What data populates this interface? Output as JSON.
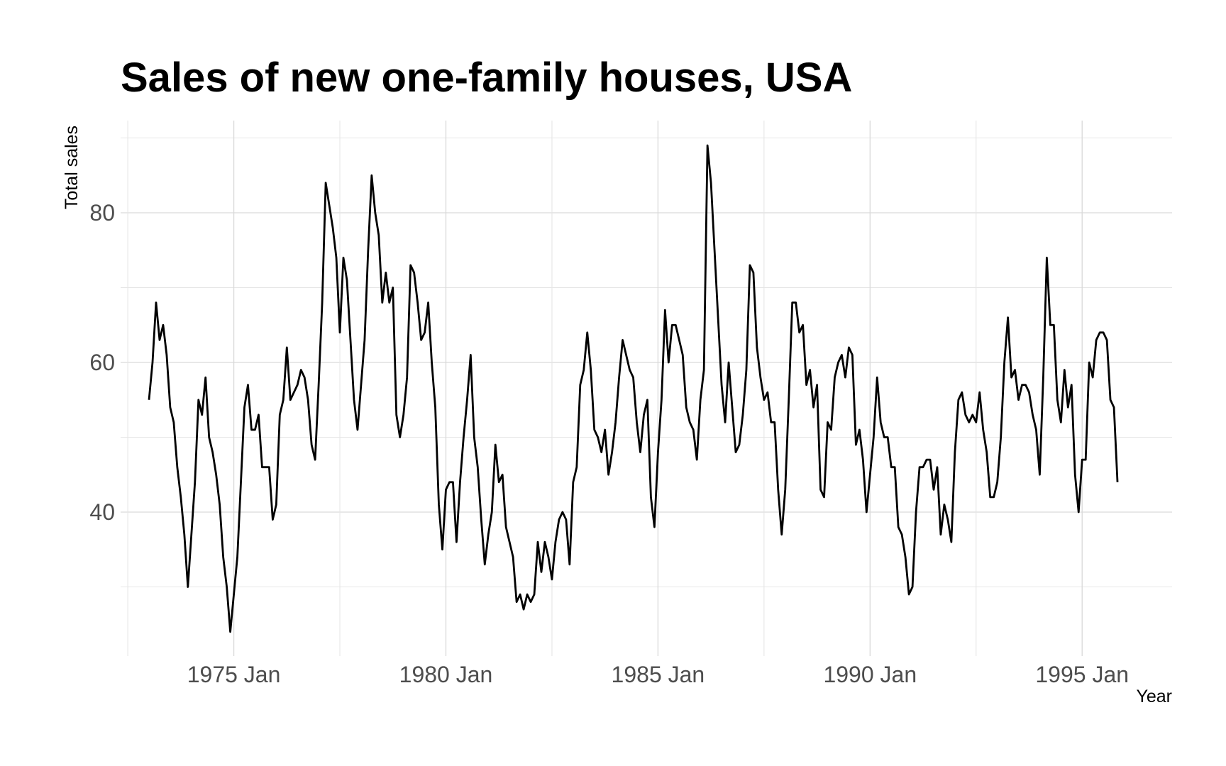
{
  "chart_data": {
    "type": "line",
    "title": "Sales of new one-family houses, USA",
    "xlabel": "Year",
    "ylabel": "Total sales",
    "x_start": "1973 Jan",
    "x_frequency": "monthly",
    "x_ticks": [
      "1975 Jan",
      "1980 Jan",
      "1985 Jan",
      "1990 Jan",
      "1995 Jan"
    ],
    "y_ticks": [
      40,
      60,
      80
    ],
    "ylim": [
      20,
      92
    ],
    "grid": true,
    "line_color": "#000000",
    "series": [
      {
        "values": [
          55,
          60,
          68,
          63,
          65,
          61,
          54,
          52,
          46,
          42,
          37,
          30,
          37,
          44,
          55,
          53,
          58,
          50,
          48,
          45,
          41,
          34,
          30,
          24,
          29,
          34,
          44,
          54,
          57,
          51,
          51,
          53,
          46,
          46,
          46,
          39,
          41,
          53,
          55,
          62,
          55,
          56,
          57,
          59,
          58,
          55,
          49,
          47,
          57,
          68,
          84,
          81,
          78,
          74,
          64,
          74,
          71,
          63,
          55,
          51,
          57,
          63,
          75,
          85,
          80,
          77,
          68,
          72,
          68,
          70,
          53,
          50,
          53,
          58,
          73,
          72,
          68,
          63,
          64,
          68,
          60,
          54,
          41,
          35,
          43,
          44,
          44,
          36,
          44,
          50,
          55,
          61,
          50,
          46,
          39,
          33,
          37,
          40,
          49,
          44,
          45,
          38,
          36,
          34,
          28,
          29,
          27,
          29,
          28,
          29,
          36,
          32,
          36,
          34,
          31,
          36,
          39,
          40,
          39,
          33,
          44,
          46,
          57,
          59,
          64,
          59,
          51,
          50,
          48,
          51,
          45,
          48,
          52,
          58,
          63,
          61,
          59,
          58,
          52,
          48,
          53,
          55,
          42,
          38,
          48,
          55,
          67,
          60,
          65,
          65,
          63,
          61,
          54,
          52,
          51,
          47,
          55,
          59,
          89,
          84,
          75,
          66,
          57,
          52,
          60,
          54,
          48,
          49,
          53,
          59,
          73,
          72,
          62,
          58,
          55,
          56,
          52,
          52,
          43,
          37,
          43,
          55,
          68,
          68,
          64,
          65,
          57,
          59,
          54,
          57,
          43,
          42,
          52,
          51,
          58,
          60,
          61,
          58,
          62,
          61,
          49,
          51,
          47,
          40,
          45,
          50,
          58,
          52,
          50,
          50,
          46,
          46,
          38,
          37,
          34,
          29,
          30,
          40,
          46,
          46,
          47,
          47,
          43,
          46,
          37,
          41,
          39,
          36,
          48,
          55,
          56,
          53,
          52,
          53,
          52,
          56,
          51,
          48,
          42,
          42,
          44,
          50,
          60,
          66,
          58,
          59,
          55,
          57,
          57,
          56,
          53,
          51,
          45,
          58,
          74,
          65,
          65,
          55,
          52,
          59,
          54,
          57,
          45,
          40,
          47,
          47,
          60,
          58,
          63,
          64,
          64,
          63,
          55,
          54,
          44
        ]
      }
    ]
  }
}
